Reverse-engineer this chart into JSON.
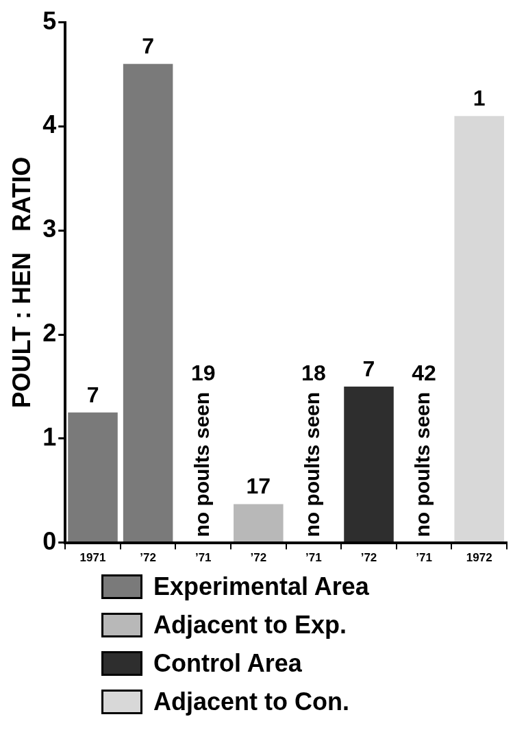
{
  "chart_data": {
    "type": "bar",
    "ylabel": "POULT : HEN   RATIO",
    "categories": [
      "1971",
      "’72",
      "’71",
      "’72",
      "’71",
      "’72",
      "’71",
      "1972"
    ],
    "series": [
      {
        "name": "Experimental Area",
        "color": "#7a7a7a",
        "values": [
          1.25,
          4.6,
          null,
          null,
          null,
          null,
          null,
          null
        ]
      },
      {
        "name": "Adjacent to Exp.",
        "color": "#b8b8b8",
        "values": [
          null,
          null,
          0,
          0.37,
          null,
          null,
          null,
          null
        ]
      },
      {
        "name": "Control Area",
        "color": "#2e2e2e",
        "values": [
          null,
          null,
          null,
          null,
          0,
          1.5,
          null,
          null
        ]
      },
      {
        "name": "Adjacent to Con.",
        "color": "#d8d8d8",
        "values": [
          null,
          null,
          null,
          null,
          null,
          null,
          0,
          4.1
        ]
      }
    ],
    "annotations": [
      "7",
      "7",
      "19",
      "17",
      "18",
      "7",
      "42",
      "1",
      "no poults seen",
      "no poults seen",
      "no poults seen"
    ],
    "ylim": [
      0,
      5
    ],
    "yticks": [
      0,
      1,
      2,
      3,
      4,
      5
    ],
    "legend": "bottom"
  }
}
